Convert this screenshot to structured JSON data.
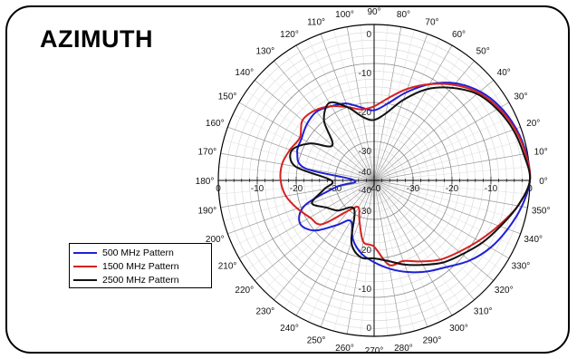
{
  "title": "AZIMUTH",
  "chart_data": {
    "type": "polar-line",
    "title": "AZIMUTH",
    "angle_labels": [
      "0°",
      "10°",
      "20°",
      "30°",
      "40°",
      "50°",
      "60°",
      "70°",
      "80°",
      "90°",
      "100°",
      "110°",
      "120°",
      "130°",
      "140°",
      "150°",
      "160°",
      "170°",
      "180°",
      "190°",
      "200°",
      "210°",
      "220°",
      "230°",
      "240°",
      "250°",
      "260°",
      "270°",
      "280°",
      "290°",
      "300°",
      "310°",
      "320°",
      "330°",
      "340°",
      "350°"
    ],
    "radial_ticks": [
      0,
      -10,
      -20,
      -30,
      -40
    ],
    "radial_tick_labels": [
      "0",
      "-10",
      "-20",
      "-30",
      "-40"
    ],
    "rlim": [
      -40,
      0
    ],
    "grid": true,
    "legend_position": "lower-left",
    "series": [
      {
        "name": "500 MHz Pattern",
        "color": "#1f1fd6",
        "angles": [
          0,
          10,
          20,
          30,
          40,
          50,
          60,
          70,
          80,
          90,
          100,
          110,
          120,
          130,
          140,
          150,
          160,
          170,
          180,
          190,
          200,
          210,
          220,
          230,
          240,
          250,
          260,
          270,
          280,
          290,
          300,
          310,
          320,
          330,
          340,
          350,
          360
        ],
        "values": [
          0,
          -0.3,
          -1.2,
          -2.5,
          -4.5,
          -7.5,
          -11.5,
          -16,
          -20,
          -22,
          -21,
          -19,
          -18,
          -17,
          -17.5,
          -18.5,
          -19,
          -22,
          -35,
          -30,
          -21,
          -18,
          -20,
          -25,
          -28,
          -24,
          -21,
          -19,
          -17,
          -15,
          -13,
          -11,
          -8,
          -5.5,
          -3.5,
          -1.5,
          0
        ]
      },
      {
        "name": "1500 MHz Pattern",
        "color": "#d62020",
        "angles": [
          0,
          10,
          20,
          30,
          40,
          50,
          60,
          70,
          80,
          90,
          100,
          110,
          120,
          130,
          140,
          150,
          160,
          170,
          180,
          190,
          200,
          210,
          220,
          230,
          240,
          250,
          260,
          270,
          280,
          290,
          300,
          310,
          320,
          330,
          340,
          350,
          360
        ],
        "values": [
          0,
          -0.5,
          -1.5,
          -3,
          -5,
          -8,
          -11.5,
          -15,
          -18.5,
          -21,
          -21.5,
          -20,
          -18,
          -16.5,
          -16,
          -18,
          -17,
          -16,
          -16,
          -17,
          -19,
          -21,
          -22.5,
          -30,
          -32,
          -29,
          -24,
          -23,
          -18,
          -18,
          -16,
          -13.5,
          -11.5,
          -9,
          -6,
          -2.5,
          0
        ]
      },
      {
        "name": "2500 MHz Pattern",
        "color": "#111111",
        "angles": [
          0,
          10,
          20,
          30,
          40,
          50,
          60,
          70,
          80,
          90,
          100,
          110,
          120,
          130,
          140,
          150,
          160,
          170,
          180,
          190,
          200,
          210,
          220,
          230,
          240,
          250,
          260,
          270,
          280,
          290,
          300,
          310,
          320,
          330,
          340,
          350,
          360
        ],
        "values": [
          0,
          -1,
          -2,
          -3.5,
          -5.5,
          -9,
          -13,
          -18,
          -22.5,
          -24.5,
          -23.5,
          -20,
          -17,
          -20,
          -26,
          -21,
          -17.5,
          -19.5,
          -29,
          -27,
          -23,
          -26,
          -28,
          -31,
          -30,
          -23,
          -20,
          -20,
          -19,
          -17,
          -15,
          -12.5,
          -10.5,
          -8,
          -5.5,
          -2.5,
          0
        ]
      }
    ]
  }
}
